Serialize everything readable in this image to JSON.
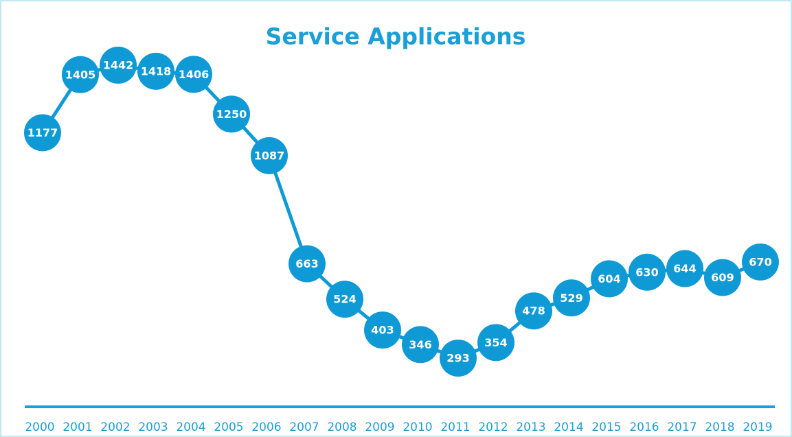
{
  "chart_data": {
    "type": "line",
    "title": "Service Applications",
    "categories": [
      "2000",
      "2001",
      "2002",
      "2003",
      "2004",
      "2005",
      "2006",
      "2007",
      "2008",
      "2009",
      "2010",
      "2011",
      "2012",
      "2013",
      "2014",
      "2015",
      "2016",
      "2017",
      "2018",
      "2019"
    ],
    "values": [
      1177,
      1405,
      1442,
      1418,
      1406,
      1250,
      1087,
      663,
      524,
      403,
      346,
      293,
      354,
      478,
      529,
      604,
      630,
      644,
      609,
      670
    ],
    "color": "#0f9ad6"
  }
}
